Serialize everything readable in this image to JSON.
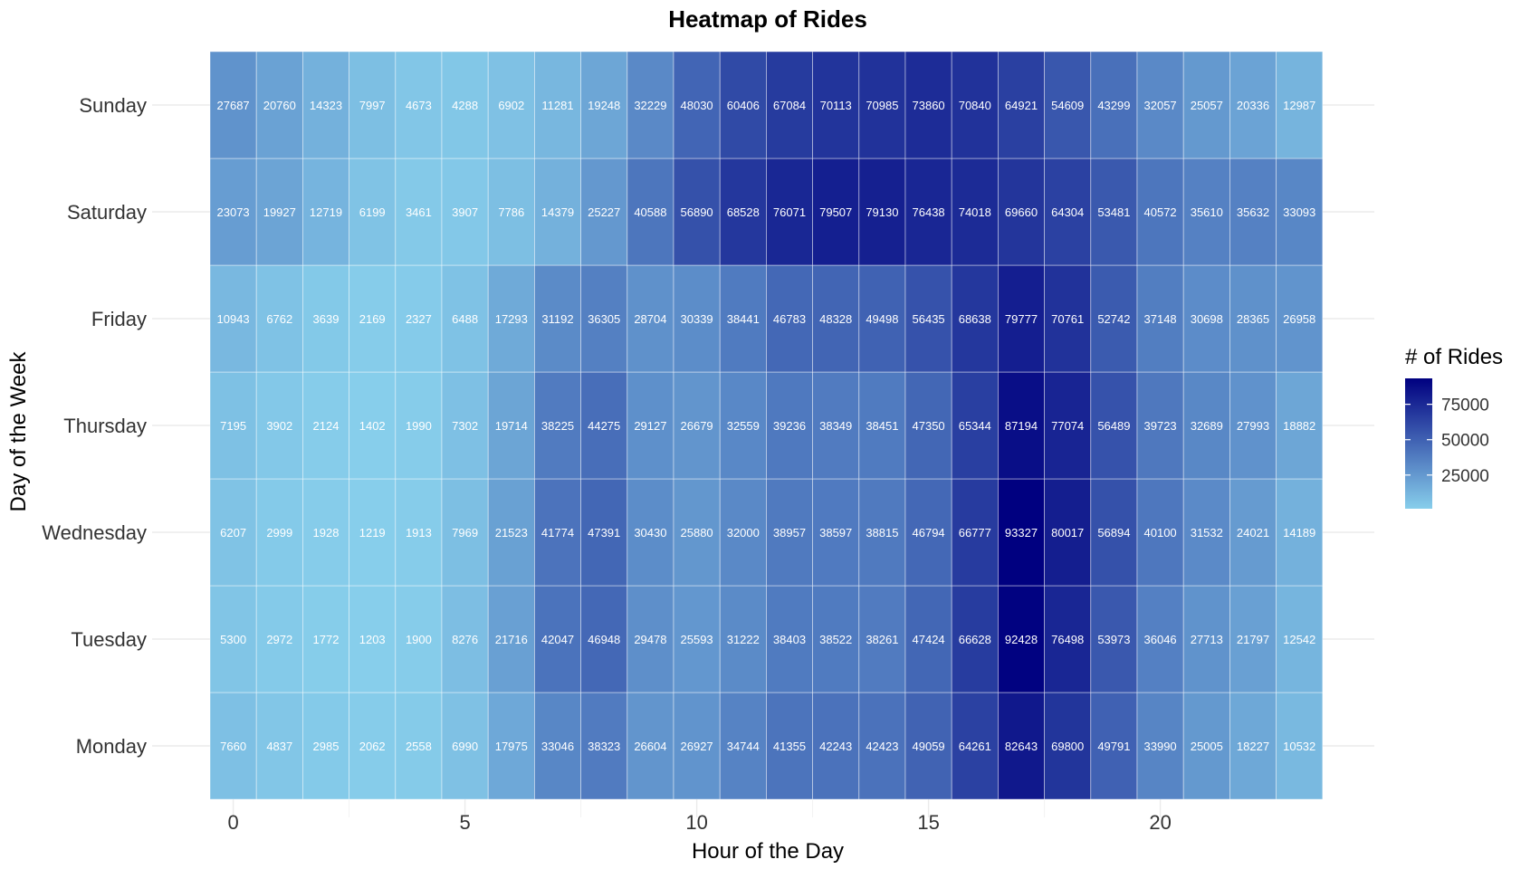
{
  "chart_data": {
    "type": "heatmap",
    "title": "Heatmap of Rides",
    "xlabel": "Hour of the Day",
    "ylabel": "Day of the Week",
    "legend_title": "# of Rides",
    "legend_placement": "right",
    "grid": true,
    "x": [
      0,
      1,
      2,
      3,
      4,
      5,
      6,
      7,
      8,
      9,
      10,
      11,
      12,
      13,
      14,
      15,
      16,
      17,
      18,
      19,
      20,
      21,
      22,
      23
    ],
    "x_ticks": [
      0,
      5,
      10,
      15,
      20
    ],
    "x_tick_labels": [
      "0",
      "5",
      "10",
      "15",
      "20"
    ],
    "y": [
      "Monday",
      "Tuesday",
      "Wednesday",
      "Thursday",
      "Friday",
      "Saturday",
      "Sunday"
    ],
    "values": [
      [
        7660,
        4837,
        2985,
        2062,
        2558,
        6990,
        17975,
        33046,
        38323,
        26604,
        26927,
        34744,
        41355,
        42243,
        42423,
        49059,
        64261,
        82643,
        69800,
        49791,
        33990,
        25005,
        18227,
        10532
      ],
      [
        5300,
        2972,
        1772,
        1203,
        1900,
        8276,
        21716,
        42047,
        46948,
        29478,
        25593,
        31222,
        38403,
        38522,
        38261,
        47424,
        66628,
        92428,
        76498,
        53973,
        36046,
        27713,
        21797,
        12542
      ],
      [
        6207,
        2999,
        1928,
        1219,
        1913,
        7969,
        21523,
        41774,
        47391,
        30430,
        25880,
        32000,
        38957,
        38597,
        38815,
        46794,
        66777,
        93327,
        80017,
        56894,
        40100,
        31532,
        24021,
        14189
      ],
      [
        7195,
        3902,
        2124,
        1402,
        1990,
        7302,
        19714,
        38225,
        44275,
        29127,
        26679,
        32559,
        39236,
        38349,
        38451,
        47350,
        65344,
        87194,
        77074,
        56489,
        39723,
        32689,
        27993,
        18882
      ],
      [
        10943,
        6762,
        3639,
        2169,
        2327,
        6488,
        17293,
        31192,
        36305,
        28704,
        30339,
        38441,
        46783,
        48328,
        49498,
        56435,
        68638,
        79777,
        70761,
        52742,
        37148,
        30698,
        28365,
        26958
      ],
      [
        23073,
        19927,
        12719,
        6199,
        3461,
        3907,
        7786,
        14379,
        25227,
        40588,
        56890,
        68528,
        76071,
        79507,
        79130,
        76438,
        74018,
        69660,
        64304,
        53481,
        40572,
        35610,
        35632,
        33093
      ],
      [
        27687,
        20760,
        14323,
        7997,
        4673,
        4288,
        6902,
        11281,
        19248,
        32229,
        48030,
        60406,
        67084,
        70113,
        70985,
        73860,
        70840,
        64921,
        54609,
        43299,
        32057,
        25057,
        20336,
        12987
      ]
    ],
    "color_scale": {
      "low": "#87ceeb",
      "high": "#000080",
      "min": 1203,
      "max": 93327
    },
    "legend_ticks": [
      25000,
      50000,
      75000
    ],
    "legend_tick_labels": [
      "25000",
      "50000",
      "75000"
    ]
  }
}
